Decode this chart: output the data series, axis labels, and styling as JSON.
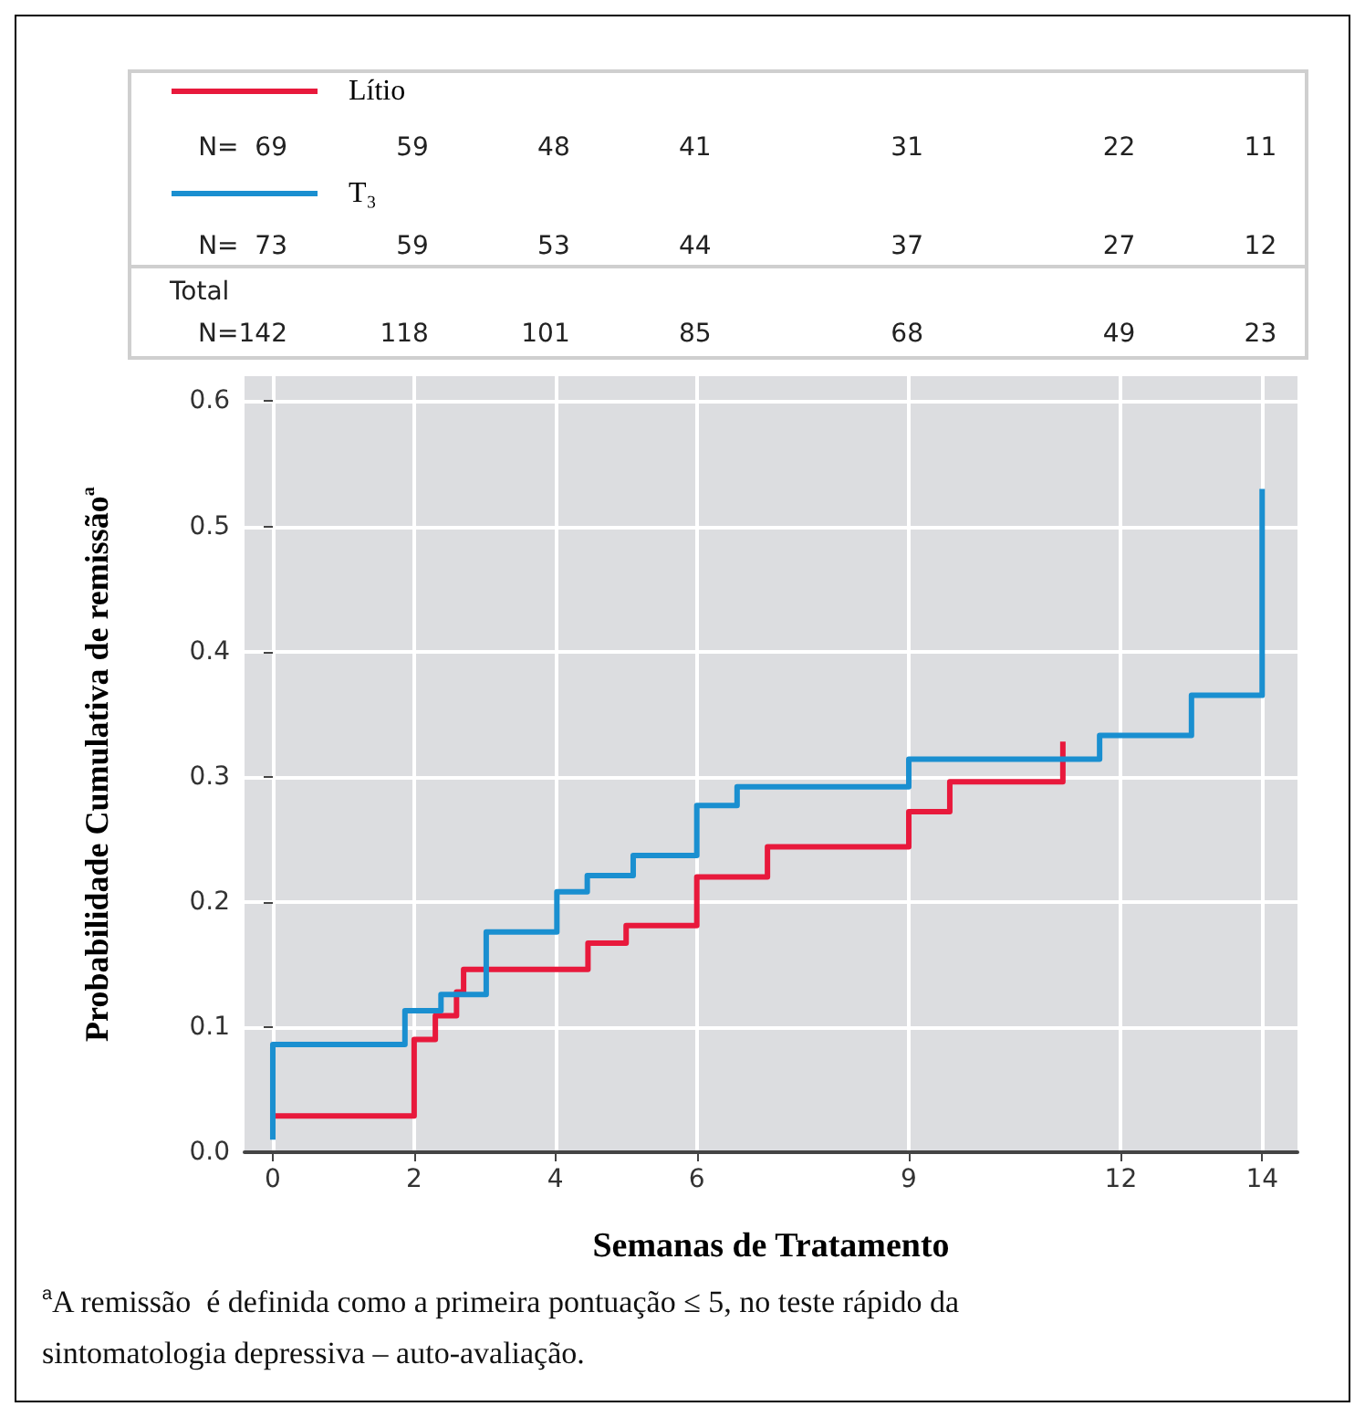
{
  "chart_data": {
    "type": "step",
    "xlabel": "Semanas de Tratamento",
    "ylabel": "Probabilidade Cumulativa de remissão$^{a}$",
    "series": [
      {
        "name": "Lítio",
        "color": "#e8193c",
        "x": [
          0,
          2,
          2.3,
          2.6,
          2.7,
          4.46,
          5.0,
          6,
          7.0,
          9,
          9.58,
          11.18,
          11.18
        ],
        "values": [
          0.029,
          0.09,
          0.109,
          0.128,
          0.146,
          0.167,
          0.181,
          0.22,
          0.244,
          0.272,
          0.296,
          0.328,
          0.328
        ]
      },
      {
        "name": "T₃",
        "color": "#1a8fd0",
        "x": [
          0,
          0,
          1.87,
          2.38,
          3.02,
          4.02,
          4.45,
          5.1,
          6,
          6.57,
          9,
          11.7,
          13.0,
          14,
          14
        ],
        "values": [
          0.01,
          0.086,
          0.113,
          0.126,
          0.176,
          0.208,
          0.221,
          0.237,
          0.277,
          0.292,
          0.314,
          0.333,
          0.365,
          0.53,
          0.53
        ]
      }
    ],
    "xlim": [
      -0.4,
      14.5
    ],
    "ylim": [
      0,
      0.62
    ],
    "xticks": [
      0,
      2,
      4,
      6,
      9,
      12,
      14
    ],
    "yticks": [
      {
        "value": 0,
        "label": "0.0"
      },
      0.1,
      0.2,
      0.3,
      0.4,
      0.5,
      0.6
    ],
    "grid": true,
    "legend": "top left",
    "marker": "none",
    "line_style": "solid",
    "annotations": [
      "N=  69",
      "59",
      "48",
      "41",
      "31",
      "22",
      "11",
      "N=  73",
      "59",
      "53",
      "44",
      "37",
      "27",
      "12",
      "Total",
      "N=142",
      "118",
      "101",
      "85",
      "68",
      "49",
      "23",
      "$^{a}$A remissão  é definida como a primeira pontuação ≤ 5, no teste rápido da sintomatologia depressiva – auto-avaliação."
    ]
  }
}
